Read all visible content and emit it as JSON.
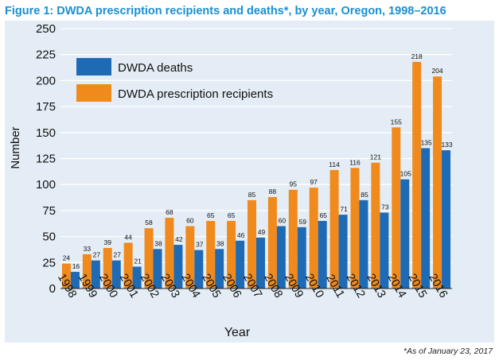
{
  "title": "Figure 1: DWDA prescription recipients and deaths*, by year, Oregon, 1998–2016",
  "footnote": "*As of January 23, 2017",
  "colors": {
    "deaths": "#1f6ab5",
    "recipients": "#f08a1c",
    "title": "#1a8fd1",
    "panel": "#e4edf5",
    "grid": "#ffffff"
  },
  "chart_data": {
    "type": "bar",
    "title": "Figure 1: DWDA prescription recipients and deaths*, by year, Oregon, 1998–2016",
    "xlabel": "Year",
    "ylabel": "Number",
    "ylim": [
      0,
      250
    ],
    "yticks": [
      0,
      25,
      50,
      75,
      100,
      125,
      150,
      175,
      200,
      225,
      250
    ],
    "grid": true,
    "legend_position": "top-left",
    "categories": [
      "1998",
      "1999",
      "2000",
      "2001",
      "2002",
      "2003",
      "2004",
      "2005",
      "2006",
      "2007",
      "2008",
      "2009",
      "2010",
      "2011",
      "2012",
      "2013",
      "2014",
      "2015",
      "2016"
    ],
    "series": [
      {
        "name": "DWDA prescription recipients",
        "values": [
          24,
          33,
          39,
          44,
          58,
          68,
          60,
          65,
          65,
          85,
          88,
          95,
          97,
          114,
          116,
          121,
          155,
          218,
          204
        ]
      },
      {
        "name": "DWDA deaths",
        "values": [
          16,
          27,
          27,
          21,
          38,
          42,
          37,
          38,
          46,
          49,
          60,
          59,
          65,
          71,
          85,
          73,
          105,
          135,
          133
        ]
      }
    ],
    "legend": [
      "DWDA deaths",
      "DWDA prescription recipients"
    ]
  }
}
